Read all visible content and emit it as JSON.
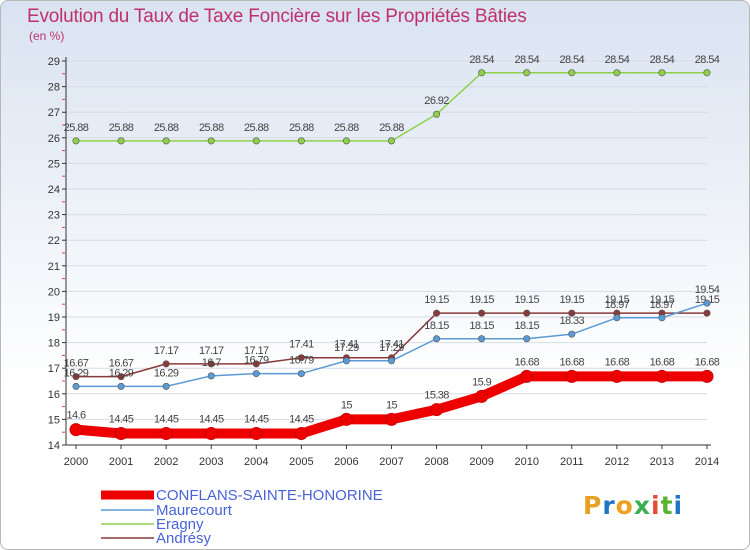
{
  "chart_data": {
    "type": "line",
    "title": "Evolution du Taux de Taxe Foncière sur les Propriétés Bâties",
    "subtitle": "(en %)",
    "xlabel": "",
    "ylabel": "(en %)",
    "ylim": [
      14,
      29
    ],
    "yticks": [
      14,
      15,
      16,
      17,
      18,
      19,
      20,
      21,
      22,
      23,
      24,
      25,
      26,
      27,
      28,
      29
    ],
    "categories": [
      "2000",
      "2001",
      "2002",
      "2003",
      "2004",
      "2005",
      "2006",
      "2007",
      "2008",
      "2009",
      "2010",
      "2011",
      "2012",
      "2013",
      "2014"
    ],
    "series": [
      {
        "name": "CONFLANS-SAINTE-HONORINE",
        "color": "#ee0000",
        "values": [
          14.6,
          14.45,
          14.45,
          14.45,
          14.45,
          14.45,
          15,
          15,
          15.38,
          15.9,
          16.68,
          16.68,
          16.68,
          16.68,
          16.68
        ],
        "labels": [
          "14.6",
          "14.45",
          "14.45",
          "14.45",
          "14.45",
          "14.45",
          "15",
          "15",
          "15.38",
          "15.9",
          "16.68",
          "16.68",
          "16.68",
          "16.68",
          "16.68"
        ]
      },
      {
        "name": "Maurecourt",
        "color": "#5b9bd5",
        "values": [
          16.29,
          16.29,
          16.29,
          16.7,
          16.79,
          16.79,
          17.29,
          17.29,
          18.15,
          18.15,
          18.15,
          18.33,
          18.97,
          18.97,
          19.54
        ],
        "labels": [
          "16.29",
          "16.29",
          "16.29",
          "16.7",
          "16.79",
          "16.79",
          "17.29",
          "17.29",
          "18.15",
          "18.15",
          "18.15",
          "18.33",
          "18.97",
          "18.97",
          "19.54"
        ]
      },
      {
        "name": "Eragny",
        "color": "#8fd04a",
        "values": [
          25.88,
          25.88,
          25.88,
          25.88,
          25.88,
          25.88,
          25.88,
          25.88,
          26.92,
          28.54,
          28.54,
          28.54,
          28.54,
          28.54,
          28.54
        ],
        "labels": [
          "25.88",
          "25.88",
          "25.88",
          "25.88",
          "25.88",
          "25.88",
          "25.88",
          "25.88",
          "26.92",
          "28.54",
          "28.54",
          "28.54",
          "28.54",
          "28.54",
          "28.54"
        ]
      },
      {
        "name": "Andrésy",
        "color": "#8b3a3a",
        "values": [
          16.67,
          16.67,
          17.17,
          17.17,
          17.17,
          17.41,
          17.41,
          17.41,
          19.15,
          19.15,
          19.15,
          19.15,
          19.15,
          19.15,
          19.15
        ],
        "labels": [
          "16.67",
          "16.67",
          "17.17",
          "17.17",
          "17.17",
          "17.41",
          "17.41",
          "17.41",
          "19.15",
          "19.15",
          "19.15",
          "19.15",
          "19.15",
          "19.15",
          "19.15"
        ]
      }
    ],
    "legend_position": "bottom-left"
  },
  "logo": {
    "letters": [
      "P",
      "r",
      "o",
      "x",
      "i",
      "t",
      "i"
    ]
  }
}
